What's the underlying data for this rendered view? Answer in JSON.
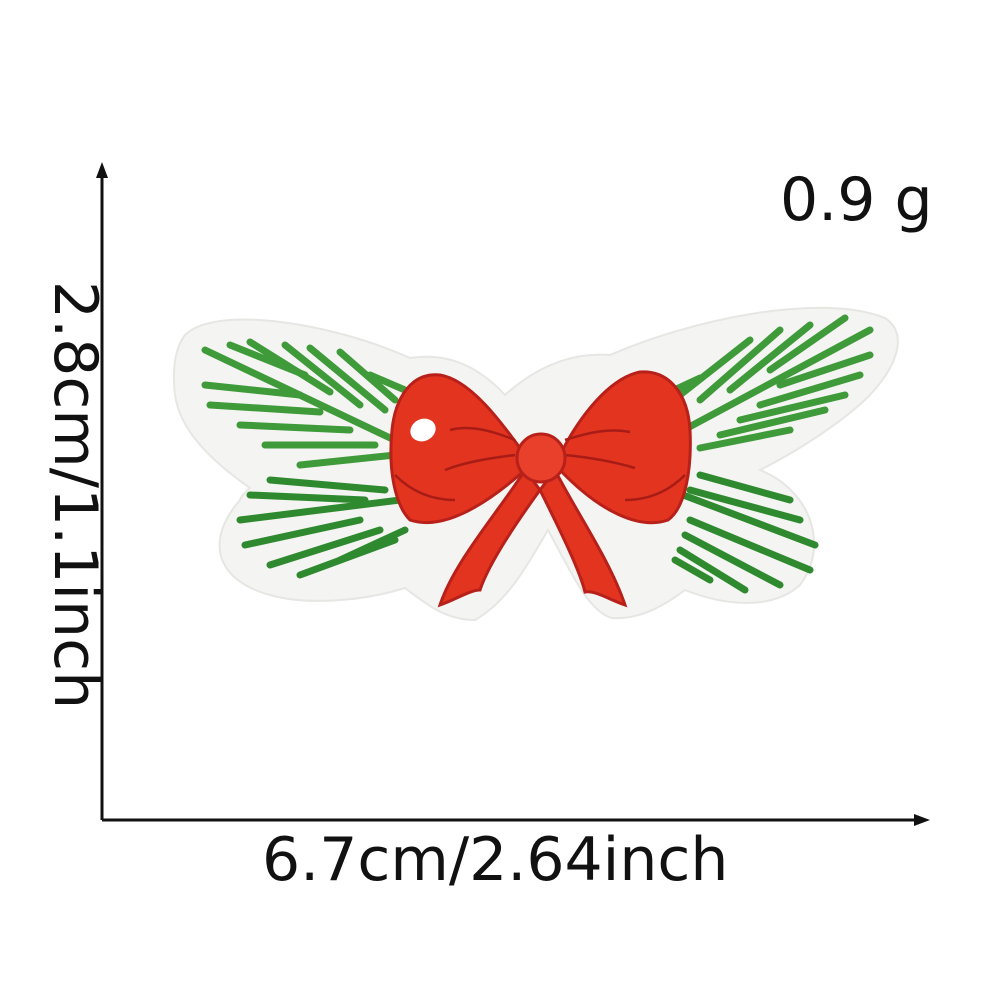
{
  "dimensions": {
    "weight": "0.9 g",
    "width": "6.7cm/2.64inch",
    "height": "2.8cm/1.1inch"
  },
  "colors": {
    "patch_backing": "#f4f4f2",
    "pine_green": "#3f9a3a",
    "pine_green_dark": "#2f7d2c",
    "bow_red": "#e2341f",
    "bow_red_dark": "#b8201a",
    "axis": "#111111"
  },
  "icons": [
    "christmas-bow-patch-image",
    "pine-branch",
    "bow"
  ]
}
